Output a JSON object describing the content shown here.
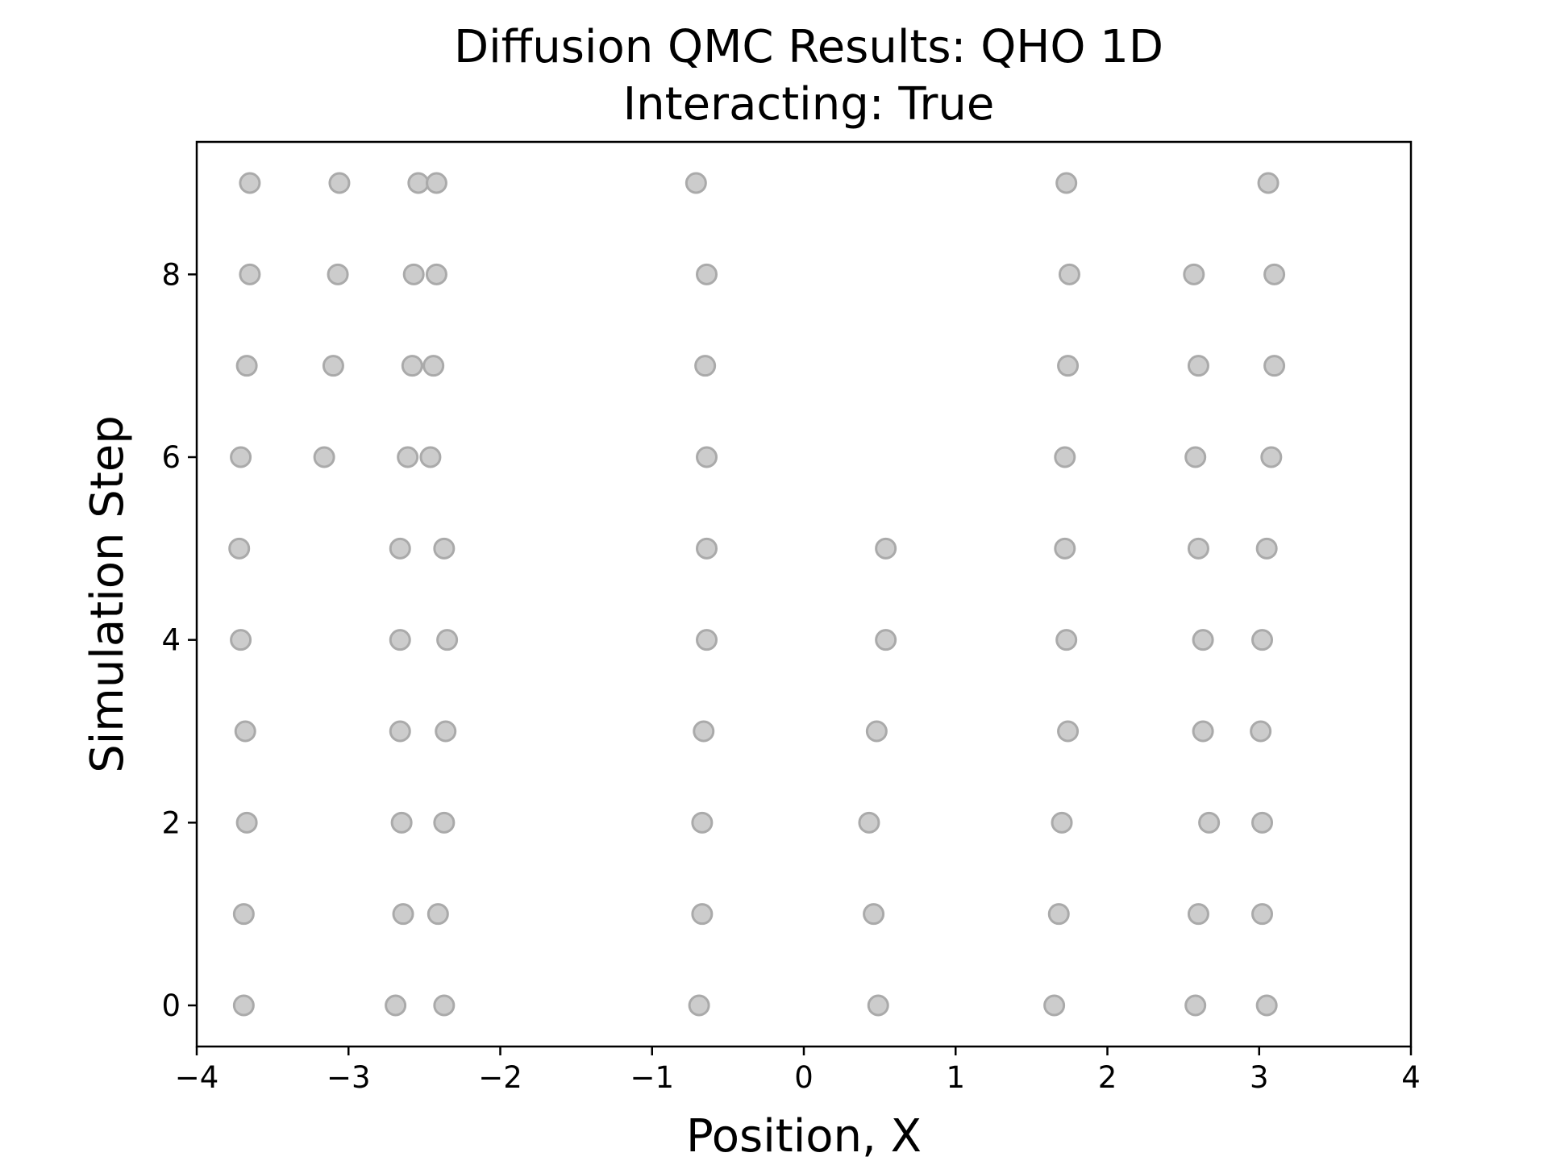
{
  "chart_data": {
    "type": "scatter",
    "title": "Diffusion QMC Results: QHO 1D",
    "subtitle": "Interacting: True",
    "xlabel": "Position, X",
    "ylabel": "Simulation Step",
    "xlim": [
      -4,
      4
    ],
    "ylim": [
      -0.45,
      9.45
    ],
    "x_ticks": [
      -4,
      -3,
      -2,
      -1,
      0,
      1,
      2,
      3,
      4
    ],
    "x_tick_labels": [
      "−4",
      "−3",
      "−2",
      "−1",
      "0",
      "1",
      "2",
      "3",
      "4"
    ],
    "y_ticks": [
      0,
      2,
      4,
      6,
      8
    ],
    "y_tick_labels": [
      "0",
      "2",
      "4",
      "6",
      "8"
    ],
    "grid": false,
    "legend": "none",
    "marker_fill": "#c8c8c8",
    "marker_edge": "#aaaaaa",
    "points": [
      {
        "x": -3.69,
        "y": 0
      },
      {
        "x": -2.69,
        "y": 0
      },
      {
        "x": -2.37,
        "y": 0
      },
      {
        "x": -0.69,
        "y": 0
      },
      {
        "x": 0.49,
        "y": 0
      },
      {
        "x": 1.65,
        "y": 0
      },
      {
        "x": 2.58,
        "y": 0
      },
      {
        "x": 3.05,
        "y": 0
      },
      {
        "x": -3.69,
        "y": 1
      },
      {
        "x": -2.64,
        "y": 1
      },
      {
        "x": -2.41,
        "y": 1
      },
      {
        "x": -0.67,
        "y": 1
      },
      {
        "x": 0.46,
        "y": 1
      },
      {
        "x": 1.68,
        "y": 1
      },
      {
        "x": 2.6,
        "y": 1
      },
      {
        "x": 3.02,
        "y": 1
      },
      {
        "x": -3.67,
        "y": 2
      },
      {
        "x": -2.65,
        "y": 2
      },
      {
        "x": -2.37,
        "y": 2
      },
      {
        "x": -0.67,
        "y": 2
      },
      {
        "x": 0.43,
        "y": 2
      },
      {
        "x": 1.7,
        "y": 2
      },
      {
        "x": 2.67,
        "y": 2
      },
      {
        "x": 3.02,
        "y": 2
      },
      {
        "x": -3.68,
        "y": 3
      },
      {
        "x": -2.66,
        "y": 3
      },
      {
        "x": -2.36,
        "y": 3
      },
      {
        "x": -0.66,
        "y": 3
      },
      {
        "x": 0.48,
        "y": 3
      },
      {
        "x": 1.74,
        "y": 3
      },
      {
        "x": 2.63,
        "y": 3
      },
      {
        "x": 3.01,
        "y": 3
      },
      {
        "x": -3.71,
        "y": 4
      },
      {
        "x": -2.66,
        "y": 4
      },
      {
        "x": -2.35,
        "y": 4
      },
      {
        "x": -0.64,
        "y": 4
      },
      {
        "x": 0.54,
        "y": 4
      },
      {
        "x": 1.73,
        "y": 4
      },
      {
        "x": 2.63,
        "y": 4
      },
      {
        "x": 3.02,
        "y": 4
      },
      {
        "x": -3.72,
        "y": 5
      },
      {
        "x": -2.66,
        "y": 5
      },
      {
        "x": -2.37,
        "y": 5
      },
      {
        "x": -0.64,
        "y": 5
      },
      {
        "x": 0.54,
        "y": 5
      },
      {
        "x": 1.72,
        "y": 5
      },
      {
        "x": 2.6,
        "y": 5
      },
      {
        "x": 3.05,
        "y": 5
      },
      {
        "x": -3.71,
        "y": 6
      },
      {
        "x": -3.16,
        "y": 6
      },
      {
        "x": -2.61,
        "y": 6
      },
      {
        "x": -2.46,
        "y": 6
      },
      {
        "x": -0.64,
        "y": 6
      },
      {
        "x": 1.72,
        "y": 6
      },
      {
        "x": 2.58,
        "y": 6
      },
      {
        "x": 3.08,
        "y": 6
      },
      {
        "x": -3.67,
        "y": 7
      },
      {
        "x": -3.1,
        "y": 7
      },
      {
        "x": -2.58,
        "y": 7
      },
      {
        "x": -2.44,
        "y": 7
      },
      {
        "x": -0.65,
        "y": 7
      },
      {
        "x": 1.74,
        "y": 7
      },
      {
        "x": 2.6,
        "y": 7
      },
      {
        "x": 3.1,
        "y": 7
      },
      {
        "x": -3.65,
        "y": 8
      },
      {
        "x": -3.07,
        "y": 8
      },
      {
        "x": -2.57,
        "y": 8
      },
      {
        "x": -2.42,
        "y": 8
      },
      {
        "x": -0.64,
        "y": 8
      },
      {
        "x": 1.75,
        "y": 8
      },
      {
        "x": 2.57,
        "y": 8
      },
      {
        "x": 3.1,
        "y": 8
      },
      {
        "x": -3.65,
        "y": 9
      },
      {
        "x": -3.06,
        "y": 9
      },
      {
        "x": -2.54,
        "y": 9
      },
      {
        "x": -2.42,
        "y": 9
      },
      {
        "x": -0.71,
        "y": 9
      },
      {
        "x": 1.73,
        "y": 9
      },
      {
        "x": 3.06,
        "y": 9
      }
    ]
  }
}
